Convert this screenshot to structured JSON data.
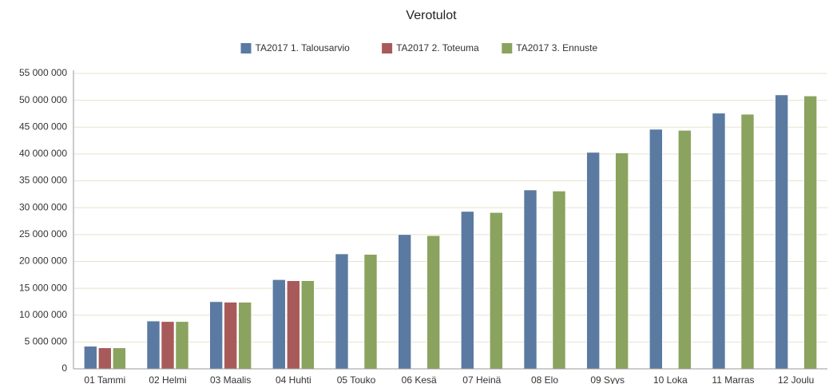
{
  "chart_data": {
    "type": "bar",
    "title": "Verotulot",
    "categories": [
      "01 Tammi",
      "02 Helmi",
      "03 Maalis",
      "04 Huhti",
      "05 Touko",
      "06 Kesä",
      "07 Heinä",
      "08 Elo",
      "09 Syys",
      "10 Loka",
      "11 Marras",
      "12 Joulu"
    ],
    "series": [
      {
        "name": "TA2017 1. Talousarvio",
        "color": "#5b7aa1",
        "values": [
          4200000,
          8900000,
          12500000,
          16600000,
          21400000,
          25000000,
          29300000,
          33300000,
          40300000,
          44600000,
          47600000,
          51000000
        ]
      },
      {
        "name": "TA2017 2. Toteuma",
        "color": "#a85a5a",
        "values": [
          3900000,
          8800000,
          12400000,
          16400000,
          null,
          null,
          null,
          null,
          null,
          null,
          null,
          null
        ]
      },
      {
        "name": "TA2017 3. Ennuste",
        "color": "#8aa35e",
        "values": [
          3900000,
          8800000,
          12400000,
          16400000,
          21300000,
          24800000,
          29100000,
          33100000,
          40200000,
          44400000,
          47400000,
          50800000
        ]
      }
    ],
    "ylim": [
      0,
      55000000
    ],
    "yticks": [
      0,
      {
        "value": 5000000,
        "label": "5 000 000"
      },
      {
        "value": 10000000,
        "label": "10 000 000"
      },
      {
        "value": 15000000,
        "label": "15 000 000"
      },
      {
        "value": 20000000,
        "label": "20 000 000"
      },
      {
        "value": 25000000,
        "label": "25 000 000"
      },
      {
        "value": 30000000,
        "label": "30 000 000"
      },
      {
        "value": 35000000,
        "label": "35 000 000"
      },
      {
        "value": 40000000,
        "label": "40 000 000"
      },
      {
        "value": 45000000,
        "label": "45 000 000"
      },
      {
        "value": 50000000,
        "label": "50 000 000"
      },
      {
        "value": 55000000,
        "label": "55 000 000"
      }
    ],
    "grid": true,
    "legend": "top"
  }
}
